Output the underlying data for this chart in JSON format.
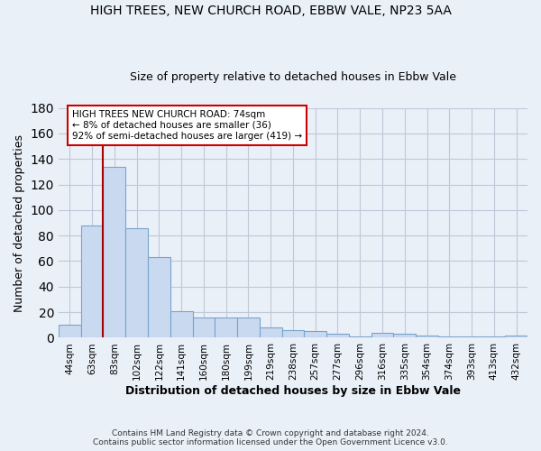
{
  "title1": "HIGH TREES, NEW CHURCH ROAD, EBBW VALE, NP23 5AA",
  "title2": "Size of property relative to detached houses in Ebbw Vale",
  "xlabel": "Distribution of detached houses by size in Ebbw Vale",
  "ylabel": "Number of detached properties",
  "footnote1": "Contains HM Land Registry data © Crown copyright and database right 2024.",
  "footnote2": "Contains public sector information licensed under the Open Government Licence v3.0.",
  "categories": [
    "44sqm",
    "63sqm",
    "83sqm",
    "102sqm",
    "122sqm",
    "141sqm",
    "160sqm",
    "180sqm",
    "199sqm",
    "219sqm",
    "238sqm",
    "257sqm",
    "277sqm",
    "296sqm",
    "316sqm",
    "335sqm",
    "354sqm",
    "374sqm",
    "393sqm",
    "413sqm",
    "432sqm"
  ],
  "values": [
    10,
    88,
    134,
    86,
    63,
    21,
    16,
    16,
    16,
    8,
    6,
    5,
    3,
    1,
    4,
    3,
    2,
    1,
    1,
    1,
    2
  ],
  "bar_color": "#c9d9f0",
  "bar_edge_color": "#7aa3cc",
  "bar_edge_width": 0.8,
  "grid_color": "#c0c8d8",
  "background_color": "#eaf0f8",
  "vline_color": "#aa0000",
  "annotation_text": "HIGH TREES NEW CHURCH ROAD: 74sqm\n← 8% of detached houses are smaller (36)\n92% of semi-detached houses are larger (419) →",
  "annotation_box_color": "#ffffff",
  "annotation_box_edge_color": "#cc0000",
  "ylim": [
    0,
    180
  ],
  "yticks": [
    0,
    20,
    40,
    60,
    80,
    100,
    120,
    140,
    160,
    180
  ]
}
